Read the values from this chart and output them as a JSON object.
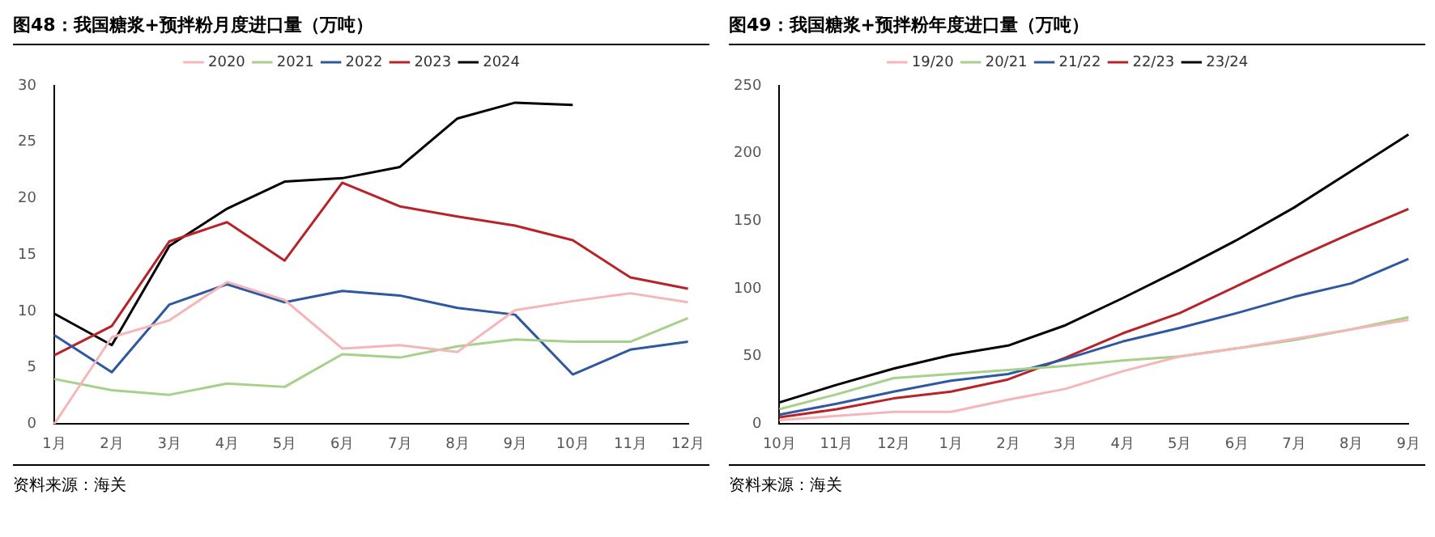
{
  "chart_data": [
    {
      "type": "line",
      "title": "图48：我国糖浆+预拌粉月度进口量（万吨）",
      "categories": [
        "1月",
        "2月",
        "3月",
        "4月",
        "5月",
        "6月",
        "7月",
        "8月",
        "9月",
        "10月",
        "11月",
        "12月"
      ],
      "series": [
        {
          "name": "2020",
          "color": "#f4b6b8",
          "values": [
            0,
            7.7,
            9.2,
            12.6,
            11.0,
            6.7,
            7.0,
            6.4,
            10.1,
            10.9,
            11.6,
            10.8
          ]
        },
        {
          "name": "2021",
          "color": "#a5d18a",
          "values": [
            4.0,
            3.0,
            2.6,
            3.6,
            3.3,
            6.2,
            5.9,
            6.9,
            7.5,
            7.3,
            7.3,
            9.4
          ]
        },
        {
          "name": "2022",
          "color": "#2f58a0",
          "values": [
            7.9,
            4.6,
            10.6,
            12.4,
            10.8,
            11.8,
            11.4,
            10.3,
            9.7,
            4.4,
            6.6,
            7.3
          ]
        },
        {
          "name": "2023",
          "color": "#b8232a",
          "values": [
            6.1,
            8.7,
            16.2,
            17.9,
            14.5,
            21.4,
            19.3,
            18.4,
            17.6,
            16.3,
            13.0,
            12.0
          ]
        },
        {
          "name": "2024",
          "color": "#000000",
          "values": [
            9.8,
            7.0,
            15.8,
            19.1,
            21.5,
            21.8,
            22.8,
            27.1,
            28.5,
            28.3,
            null,
            null
          ]
        }
      ],
      "ylim": [
        0,
        30
      ],
      "yticks": [
        0,
        5,
        10,
        15,
        20,
        25,
        30
      ],
      "grid": false,
      "legend": "top",
      "annotations": [
        "资料来源：海关"
      ]
    },
    {
      "type": "line",
      "title": "图49：我国糖浆+预拌粉年度进口量（万吨）",
      "categories": [
        "10月",
        "11月",
        "12月",
        "1月",
        "2月",
        "3月",
        "4月",
        "5月",
        "6月",
        "7月",
        "8月",
        "9月"
      ],
      "series": [
        {
          "name": "19/20",
          "color": "#f4b6b8",
          "values": [
            3,
            6,
            9,
            9,
            18,
            26,
            39,
            50,
            56,
            63,
            70,
            77
          ]
        },
        {
          "name": "20/21",
          "color": "#a5d18a",
          "values": [
            11,
            22,
            34,
            37,
            40,
            43,
            47,
            50,
            56,
            62,
            70,
            79
          ]
        },
        {
          "name": "21/22",
          "color": "#2f58a0",
          "values": [
            7,
            15,
            24,
            32,
            37,
            48,
            61,
            71,
            82,
            94,
            104,
            122
          ]
        },
        {
          "name": "22/23",
          "color": "#b8232a",
          "values": [
            5,
            11,
            19,
            24,
            33,
            49,
            67,
            82,
            102,
            122,
            141,
            159
          ]
        },
        {
          "name": "23/24",
          "color": "#000000",
          "values": [
            16,
            29,
            41,
            51,
            58,
            73,
            93,
            114,
            136,
            160,
            187,
            214
          ]
        }
      ],
      "ylim": [
        0,
        250
      ],
      "yticks": [
        0,
        50,
        100,
        150,
        200,
        250
      ],
      "grid": false,
      "legend": "top",
      "annotations": [
        "资料来源：海关"
      ]
    }
  ]
}
